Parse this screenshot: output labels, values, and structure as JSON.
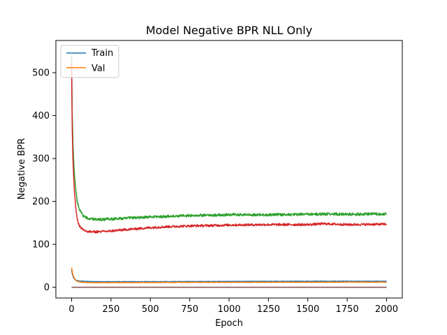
{
  "chart_data": {
    "type": "line",
    "title": "Model Negative BPR NLL Only",
    "xlabel": "Epoch",
    "ylabel": "Negative BPR",
    "xlim": [
      -100,
      2100
    ],
    "ylim": [
      -25,
      575
    ],
    "xticks": [
      0,
      250,
      500,
      750,
      1000,
      1250,
      1500,
      1750,
      2000
    ],
    "yticks": [
      0,
      100,
      200,
      300,
      400,
      500
    ],
    "grid": false,
    "legend": {
      "placement": "top-left",
      "entries": [
        {
          "label": "Train",
          "color": "#1f77b4"
        },
        {
          "label": "Val",
          "color": "#ff7f0e"
        }
      ]
    },
    "series": [
      {
        "color": "#1f77b4",
        "x": [
          0,
          5,
          10,
          20,
          30,
          50,
          75,
          100,
          150,
          200,
          300,
          500,
          750,
          1000,
          1250,
          1500,
          1750,
          2000
        ],
        "y": [
          40,
          30,
          24,
          18,
          16,
          14.5,
          14,
          13.5,
          13.2,
          13,
          13,
          13,
          13.3,
          13.5,
          13.8,
          14,
          14,
          14
        ]
      },
      {
        "color": "#ff7f0e",
        "x": [
          0,
          5,
          10,
          20,
          30,
          50,
          75,
          100,
          150,
          200,
          300,
          500,
          750,
          1000,
          1250,
          1500,
          1750,
          2000
        ],
        "y": [
          46,
          35,
          27,
          19,
          15,
          12.5,
          11.5,
          11,
          10.8,
          10.8,
          11,
          11.2,
          11.5,
          11.5,
          11.8,
          11.8,
          12,
          12
        ]
      },
      {
        "color": "#2ca02c",
        "x": [
          0,
          3,
          8,
          15,
          25,
          35,
          50,
          75,
          100,
          150,
          200,
          250,
          300,
          400,
          500,
          600,
          750,
          900,
          1000,
          1250,
          1500,
          1650,
          1750,
          2000
        ],
        "y": [
          540,
          420,
          340,
          280,
          230,
          200,
          180,
          166,
          161,
          158,
          158,
          159,
          160,
          162,
          164,
          165,
          167,
          168,
          169,
          169,
          170,
          171,
          170,
          171
        ]
      },
      {
        "color": "#d62728",
        "x": [
          0,
          3,
          8,
          15,
          25,
          35,
          50,
          75,
          100,
          150,
          200,
          250,
          300,
          400,
          500,
          600,
          750,
          900,
          1000,
          1250,
          1500,
          1600,
          1750,
          2000
        ],
        "y": [
          520,
          380,
          300,
          240,
          190,
          160,
          142,
          134,
          130,
          129,
          130,
          131,
          133,
          136,
          139,
          141,
          143,
          144,
          145,
          146,
          146,
          148,
          146,
          147
        ]
      },
      {
        "color": "#9467bd",
        "x": [
          0,
          2000
        ],
        "y": [
          0,
          0
        ]
      },
      {
        "color": "#8c564b",
        "x": [
          0,
          2000
        ],
        "y": [
          0,
          0
        ]
      }
    ]
  }
}
